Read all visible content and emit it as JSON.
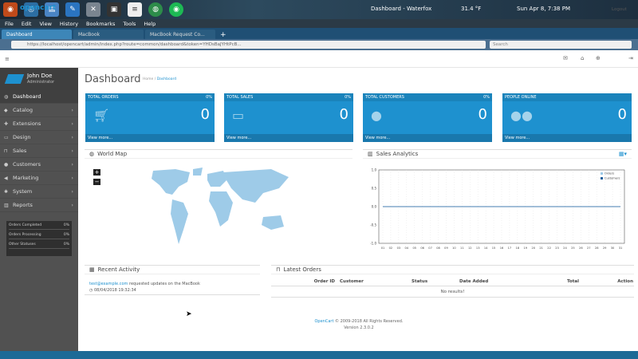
{
  "system": {
    "window_title": "Dashboard - Waterfox",
    "temperature": "31.4 °F",
    "clock": "Sun Apr 8, 7:38 PM"
  },
  "menu": [
    "File",
    "Edit",
    "View",
    "History",
    "Bookmarks",
    "Tools",
    "Help"
  ],
  "tabs": [
    {
      "label": "Dashboard",
      "active": true
    },
    {
      "label": "MacBook",
      "active": false
    },
    {
      "label": "MacBook Request Co...",
      "active": false
    }
  ],
  "url": "https://localhost/opencart/admin/index.php?route=common/dashboard&token=YHDsBaJYHtPcB...",
  "search_placeholder": "Search",
  "header": {
    "logo": "opencart",
    "logout": "Logout"
  },
  "profile": {
    "name": "John Doe",
    "role": "Administrator"
  },
  "nav": [
    {
      "label": "Dashboard",
      "icon": "dashboard-icon",
      "active": true
    },
    {
      "label": "Catalog",
      "icon": "tag-icon"
    },
    {
      "label": "Extensions",
      "icon": "puzzle-icon"
    },
    {
      "label": "Design",
      "icon": "monitor-icon"
    },
    {
      "label": "Sales",
      "icon": "cart-icon"
    },
    {
      "label": "Customers",
      "icon": "user-icon"
    },
    {
      "label": "Marketing",
      "icon": "share-icon"
    },
    {
      "label": "System",
      "icon": "gear-icon"
    },
    {
      "label": "Reports",
      "icon": "chart-icon"
    }
  ],
  "sidebar_stats": [
    {
      "label": "Orders Completed",
      "value": "0%"
    },
    {
      "label": "Orders Processing",
      "value": "0%"
    },
    {
      "label": "Other Statuses",
      "value": "0%"
    }
  ],
  "page": {
    "title": "Dashboard",
    "breadcrumb_home": "Home",
    "breadcrumb_current": "Dashboard"
  },
  "tiles": [
    {
      "label": "TOTAL ORDERS",
      "pct": "0%",
      "value": "0",
      "footer": "View more..."
    },
    {
      "label": "TOTAL SALES",
      "pct": "0%",
      "value": "0",
      "footer": "View more..."
    },
    {
      "label": "TOTAL CUSTOMERS",
      "pct": "0%",
      "value": "0",
      "footer": "View more..."
    },
    {
      "label": "PEOPLE ONLINE",
      "pct": "",
      "value": "0",
      "footer": "View more..."
    }
  ],
  "panels": {
    "map": "World Map",
    "analytics": "Sales Analytics",
    "activity": "Recent Activity",
    "orders": "Latest Orders"
  },
  "chart_data": {
    "type": "line",
    "x": [
      "01",
      "02",
      "03",
      "04",
      "05",
      "06",
      "07",
      "08",
      "09",
      "10",
      "11",
      "12",
      "13",
      "14",
      "15",
      "16",
      "17",
      "18",
      "19",
      "20",
      "21",
      "22",
      "23",
      "24",
      "25",
      "26",
      "27",
      "28",
      "29",
      "30",
      "31"
    ],
    "series": [
      {
        "name": "Orders",
        "color": "#9ecbe8",
        "values": [
          0,
          0,
          0,
          0,
          0,
          0,
          0,
          0,
          0,
          0,
          0,
          0,
          0,
          0,
          0,
          0,
          0,
          0,
          0,
          0,
          0,
          0,
          0,
          0,
          0,
          0,
          0,
          0,
          0,
          0,
          0
        ]
      },
      {
        "name": "Customers",
        "color": "#1e5f9c",
        "values": [
          0,
          0,
          0,
          0,
          0,
          0,
          0,
          0,
          0,
          0,
          0,
          0,
          0,
          0,
          0,
          0,
          0,
          0,
          0,
          0,
          0,
          0,
          0,
          0,
          0,
          0,
          0,
          0,
          0,
          0,
          0
        ]
      }
    ],
    "y_ticks": [
      "1.0",
      "0.5",
      "0.0",
      "-0.5",
      "-1.0"
    ],
    "ylim": [
      -1,
      1
    ],
    "legend": "top-right"
  },
  "activity": {
    "email": "test@example.com",
    "text": "requested updates on the MacBook",
    "time": "08/04/2018 19:32:34"
  },
  "orders": {
    "columns": [
      "Order ID",
      "Customer",
      "Status",
      "Date Added",
      "Total",
      "Action"
    ],
    "empty": "No results!"
  },
  "footer": {
    "brand": "OpenCart",
    "copy": "© 2009-2018 All Rights Reserved.",
    "version": "Version 2.3.0.2"
  }
}
